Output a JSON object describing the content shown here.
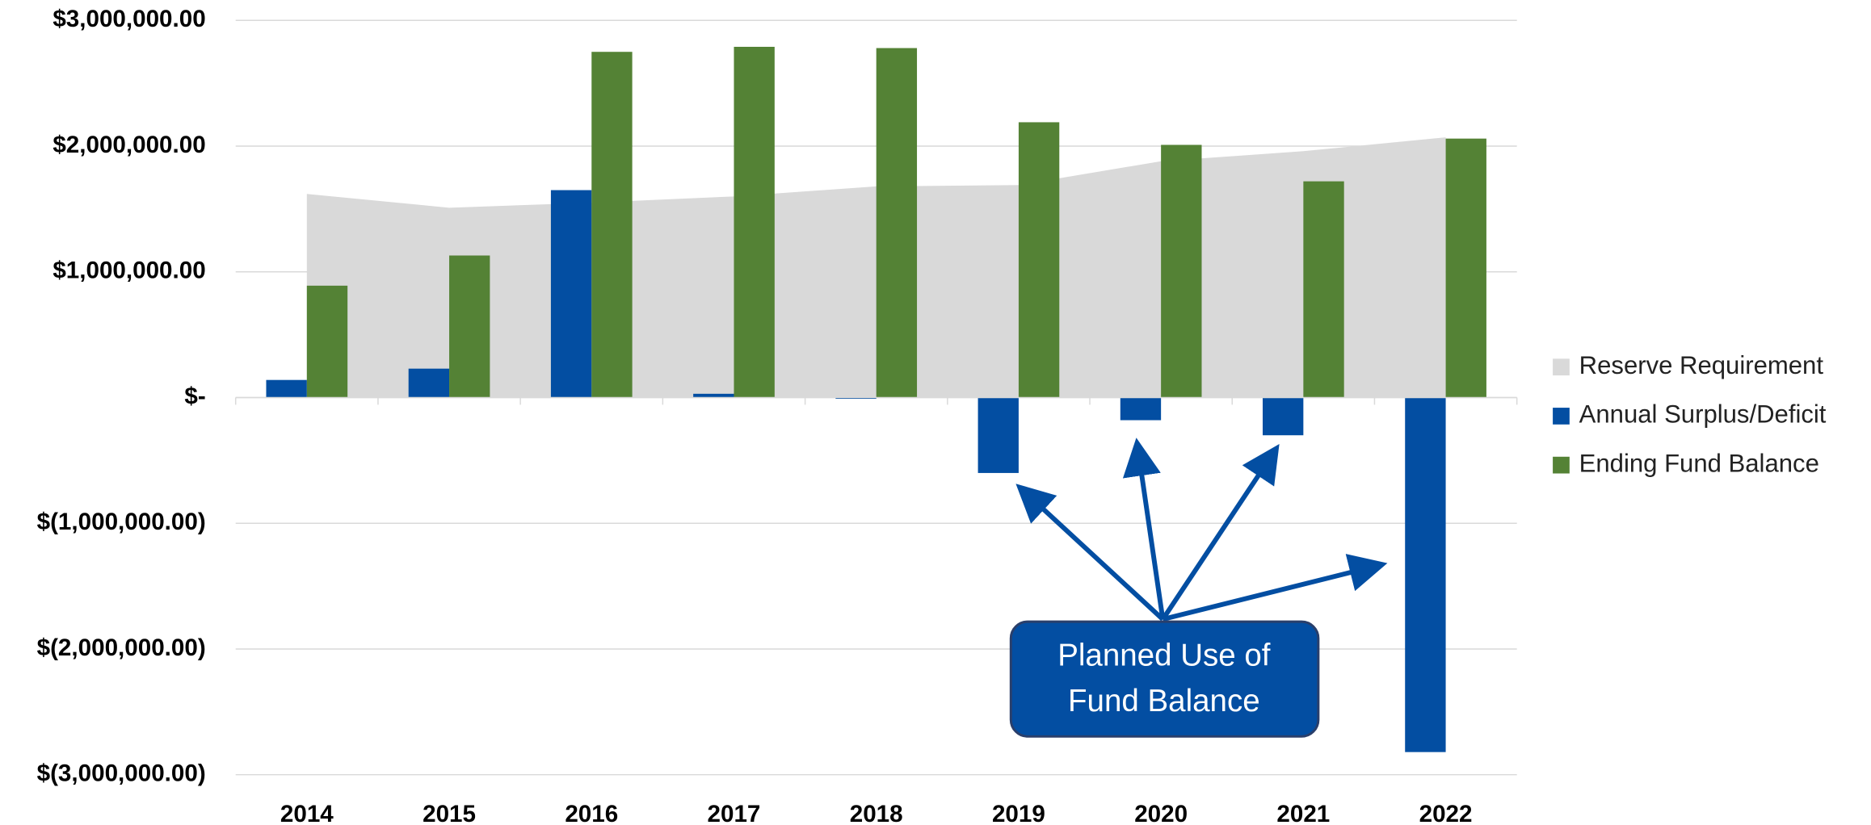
{
  "chart_data": {
    "type": "bar",
    "categories": [
      "2014",
      "2015",
      "2016",
      "2017",
      "2018",
      "2019",
      "2020",
      "2021",
      "2022"
    ],
    "series": [
      {
        "name": "Reserve Requirement",
        "color": "#d9d9d9",
        "kind": "area",
        "values": [
          1620000,
          1510000,
          1550000,
          1600000,
          1680000,
          1690000,
          1880000,
          1960000,
          2070000
        ]
      },
      {
        "name": "Annual Surplus/Deficit",
        "color": "#034ea2",
        "kind": "bar",
        "values": [
          140000,
          230000,
          1650000,
          30000,
          -10000,
          -600000,
          -180000,
          -300000,
          -2820000
        ]
      },
      {
        "name": "Ending Fund Balance",
        "color": "#548235",
        "kind": "bar",
        "values": [
          890000,
          1130000,
          2750000,
          2790000,
          2780000,
          2190000,
          2010000,
          1720000,
          2060000
        ]
      }
    ],
    "ylim": [
      -3000000,
      3000000
    ],
    "yticks": [
      {
        "value": 3000000,
        "label": "$3,000,000.00"
      },
      {
        "value": 2000000,
        "label": "$2,000,000.00"
      },
      {
        "value": 1000000,
        "label": "$1,000,000.00"
      },
      {
        "value": 0,
        "label": "$-"
      },
      {
        "value": -1000000,
        "label": "$(1,000,000.00)"
      },
      {
        "value": -2000000,
        "label": "$(2,000,000.00)"
      },
      {
        "value": -3000000,
        "label": "$(3,000,000.00)"
      }
    ],
    "grid": true,
    "legend": "right",
    "annotation": [
      "Planned Use  of",
      "Fund Balance"
    ]
  }
}
